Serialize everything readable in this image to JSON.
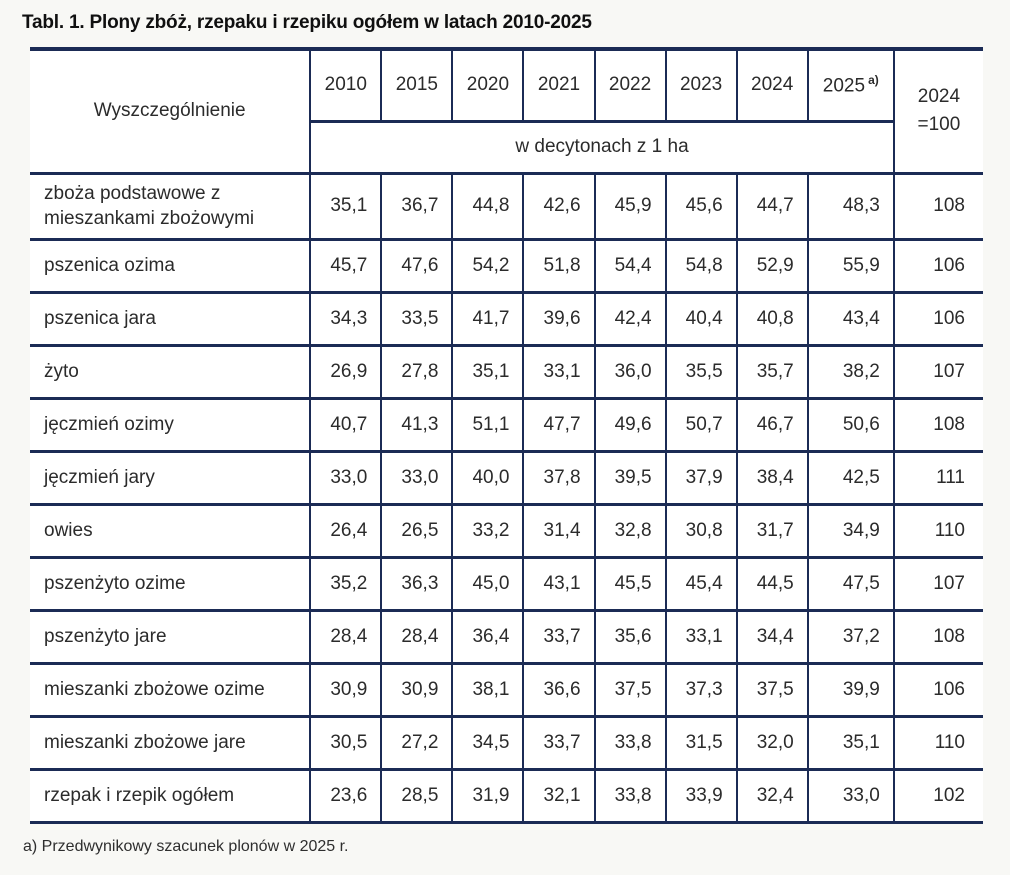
{
  "page": {
    "title": "Tabl. 1. Plony zbóż, rzepaku i rzepiku ogółem w latach 2010-2025",
    "footnote": "a) Przedwynikowy szacunek plonów w 2025 r."
  },
  "colors": {
    "border_navy": "#1b2b55",
    "background": "#f8f8f5",
    "text": "#2b2b2b"
  },
  "table": {
    "stub_header": "Wyszczególnienie",
    "year_headers": [
      "2010",
      "2015",
      "2020",
      "2021",
      "2022",
      "2023",
      "2024"
    ],
    "last_year_header": "2025",
    "last_year_footnote_mark": "a)",
    "index_header_line1": "2024",
    "index_header_line2": "=100",
    "unit_subheader": "w decytonach z 1 ha",
    "rows": [
      {
        "label": "zboża podstawowe z mieszankami zbożowymi",
        "values": [
          "35,1",
          "36,7",
          "44,8",
          "42,6",
          "45,9",
          "45,6",
          "44,7"
        ],
        "value_2025": "48,3",
        "index": "108"
      },
      {
        "label": "pszenica ozima",
        "values": [
          "45,7",
          "47,6",
          "54,2",
          "51,8",
          "54,4",
          "54,8",
          "52,9"
        ],
        "value_2025": "55,9",
        "index": "106"
      },
      {
        "label": "pszenica jara",
        "values": [
          "34,3",
          "33,5",
          "41,7",
          "39,6",
          "42,4",
          "40,4",
          "40,8"
        ],
        "value_2025": "43,4",
        "index": "106"
      },
      {
        "label": "żyto",
        "values": [
          "26,9",
          "27,8",
          "35,1",
          "33,1",
          "36,0",
          "35,5",
          "35,7"
        ],
        "value_2025": "38,2",
        "index": "107"
      },
      {
        "label": "jęczmień ozimy",
        "values": [
          "40,7",
          "41,3",
          "51,1",
          "47,7",
          "49,6",
          "50,7",
          "46,7"
        ],
        "value_2025": "50,6",
        "index": "108"
      },
      {
        "label": "jęczmień jary",
        "values": [
          "33,0",
          "33,0",
          "40,0",
          "37,8",
          "39,5",
          "37,9",
          "38,4"
        ],
        "value_2025": "42,5",
        "index": "111"
      },
      {
        "label": "owies",
        "values": [
          "26,4",
          "26,5",
          "33,2",
          "31,4",
          "32,8",
          "30,8",
          "31,7"
        ],
        "value_2025": "34,9",
        "index": "110"
      },
      {
        "label": "pszenżyto ozime",
        "values": [
          "35,2",
          "36,3",
          "45,0",
          "43,1",
          "45,5",
          "45,4",
          "44,5"
        ],
        "value_2025": "47,5",
        "index": "107"
      },
      {
        "label": "pszenżyto jare",
        "values": [
          "28,4",
          "28,4",
          "36,4",
          "33,7",
          "35,6",
          "33,1",
          "34,4"
        ],
        "value_2025": "37,2",
        "index": "108"
      },
      {
        "label": "mieszanki zbożowe ozime",
        "values": [
          "30,9",
          "30,9",
          "38,1",
          "36,6",
          "37,5",
          "37,3",
          "37,5"
        ],
        "value_2025": "39,9",
        "index": "106"
      },
      {
        "label": "mieszanki zbożowe jare",
        "values": [
          "30,5",
          "27,2",
          "34,5",
          "33,7",
          "33,8",
          "31,5",
          "32,0"
        ],
        "value_2025": "35,1",
        "index": "110"
      },
      {
        "label": "rzepak i rzepik ogółem",
        "values": [
          "23,6",
          "28,5",
          "31,9",
          "32,1",
          "33,8",
          "33,9",
          "32,4"
        ],
        "value_2025": "33,0",
        "index": "102"
      }
    ]
  }
}
